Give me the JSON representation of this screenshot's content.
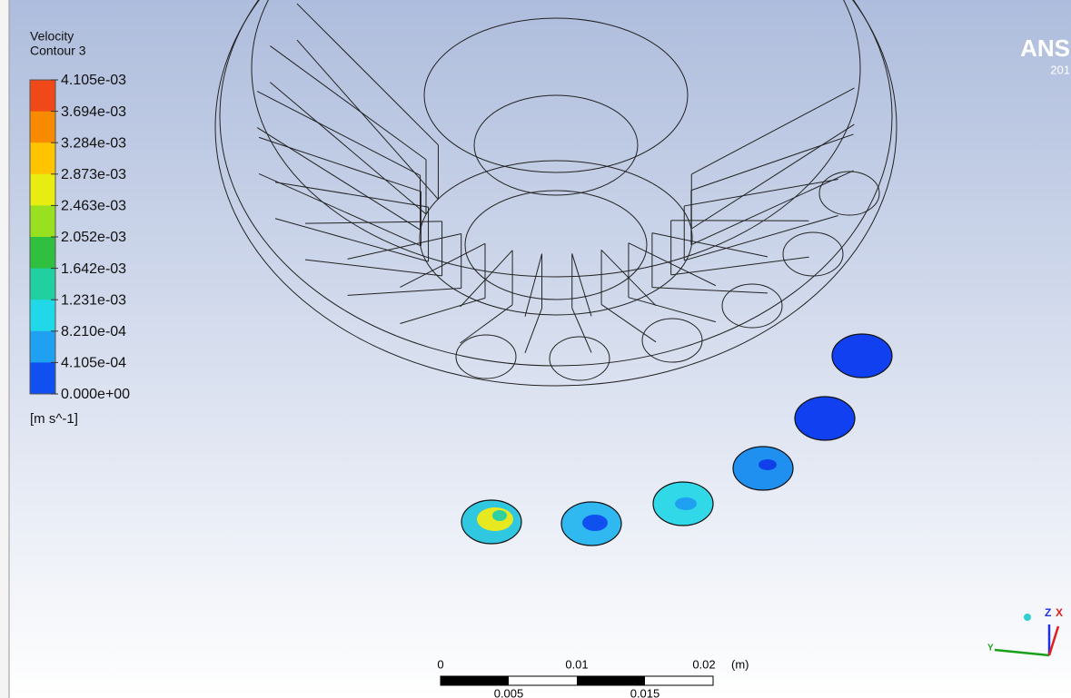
{
  "legend": {
    "title": "Velocity",
    "subtitle": "Contour 3",
    "levels": [
      "4.105e-03",
      "3.694e-03",
      "3.284e-03",
      "2.873e-03",
      "2.463e-03",
      "2.052e-03",
      "1.642e-03",
      "1.231e-03",
      "8.210e-04",
      "4.105e-04",
      "0.000e+00"
    ],
    "unit": "[m s^-1]"
  },
  "logo": {
    "name": "ANS",
    "year": "201"
  },
  "scale_bar": {
    "top_labels": [
      "0",
      "0.01",
      "0.02"
    ],
    "unit": "(m)",
    "bottom_labels": [
      "0.005",
      "0.015"
    ]
  },
  "triad": {
    "z": "Z",
    "x": "X",
    "y": "Y"
  }
}
